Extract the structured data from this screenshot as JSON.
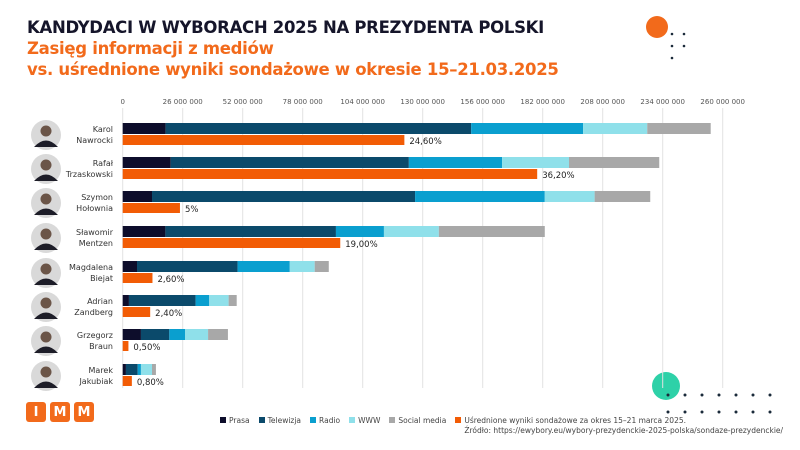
{
  "title": "KANDYDACI W WYBORACH 2025 NA PREZYDENTA POLSKI",
  "subtitle_line1": "Zasięg informacji z mediów",
  "subtitle_line2": "vs. uśrednione wyniki sondażowe w okresie 15–21.03.2025",
  "logo": "IMM",
  "colors": {
    "prasa": "#0d0d2b",
    "telewizja": "#0b4a6b",
    "radio": "#0a9fcf",
    "www": "#8fe0ea",
    "social": "#a8a8a8",
    "survey": "#f25c05",
    "accent": "#f26a1b",
    "teal": "#2ed1a8"
  },
  "chart_data": {
    "type": "bar",
    "orientation": "horizontal-stacked",
    "xlim": [
      0,
      260000000
    ],
    "x_ticks": [
      "0",
      "26 000 000",
      "52 000 000",
      "78 000 000",
      "104 000 000",
      "130 000 000",
      "156 000 000",
      "182 000 000",
      "208 000 000",
      "234 000 000",
      "260 000 000"
    ],
    "grid": true,
    "legend_placement": "bottom",
    "categories": [
      "Karol Nawrocki",
      "Rafał Trzaskowski",
      "Szymon Hołownia",
      "Sławomir Mentzen",
      "Magdalena Biejat",
      "Adrian Zandberg",
      "Grzegorz Braun",
      "Marek Jakubiak"
    ],
    "category_lines": [
      [
        "Karol",
        "Nawrocki"
      ],
      [
        "Rafał",
        "Trzaskowski"
      ],
      [
        "Szymon",
        "Hołownia"
      ],
      [
        "Sławomir",
        "Mentzen"
      ],
      [
        "Magdalena",
        "Biejat"
      ],
      [
        "Adrian",
        "Zandberg"
      ],
      [
        "Grzegorz",
        "Braun"
      ],
      [
        "Marek",
        "Jakubiak"
      ]
    ],
    "series": [
      {
        "name": "Prasa",
        "values": [
          18600000,
          20800000,
          12700000,
          18500000,
          6200000,
          2700000,
          7900000,
          1400000
        ]
      },
      {
        "name": "Telewizja",
        "values": [
          132400000,
          103200000,
          114000000,
          73900000,
          43600000,
          28900000,
          12300000,
          5100000
        ]
      },
      {
        "name": "Radio",
        "values": [
          48500000,
          40400000,
          56200000,
          20800000,
          22600000,
          5900000,
          6800000,
          1400000
        ]
      },
      {
        "name": "WWW",
        "values": [
          27800000,
          29000000,
          21600000,
          23800000,
          10800000,
          8400000,
          10000000,
          4800000
        ]
      },
      {
        "name": "Social media",
        "values": [
          27500000,
          39100000,
          24100000,
          45900000,
          6100000,
          3500000,
          8600000,
          1700000
        ]
      }
    ],
    "survey": {
      "name": "Uśrednione wyniki sondażowe za okres 15–21 marca 2025.",
      "values": [
        24.6,
        36.2,
        5,
        19,
        2.6,
        2.4,
        0.5,
        0.8
      ],
      "labels": [
        "24,60%",
        "36,20%",
        "5%",
        "19,00%",
        "2,60%",
        "2,40%",
        "0,50%",
        "0,80%"
      ]
    },
    "source": "Źródło: https://ewybory.eu/wybory-prezydenckie-2025-polska/sondaze-prezydenckie/"
  }
}
